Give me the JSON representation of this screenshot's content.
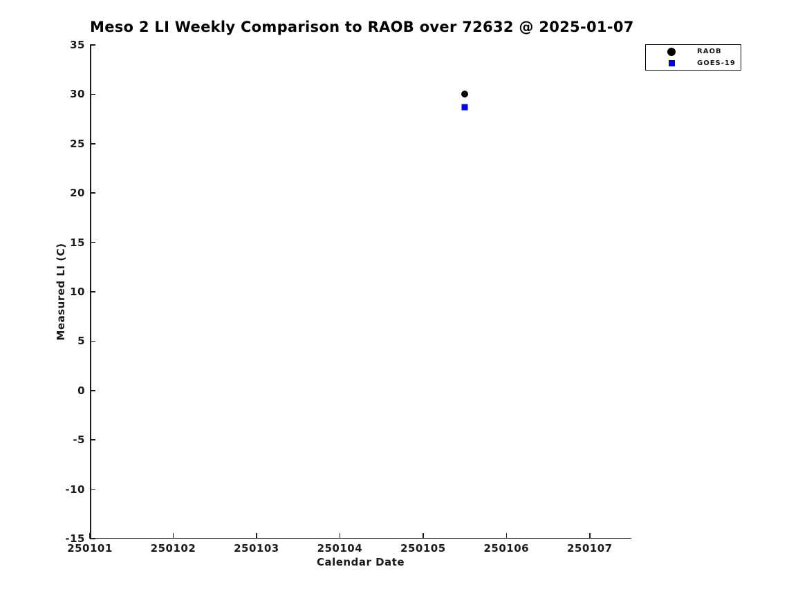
{
  "chart_data": {
    "type": "scatter",
    "title": "Meso 2 LI Weekly Comparison to RAOB over 72632 @ 2025-01-07",
    "xlabel": "Calendar Date",
    "ylabel": "Measured LI (C)",
    "xlim": [
      250101,
      250107.5
    ],
    "ylim": [
      -15,
      35
    ],
    "x_tick_values": [
      250101,
      250102,
      250103,
      250104,
      250105,
      250106,
      250107
    ],
    "x_tick_labels": [
      "250101",
      "250102",
      "250103",
      "250104",
      "250105",
      "250106",
      "250107"
    ],
    "y_tick_values": [
      -15,
      -10,
      -5,
      0,
      5,
      10,
      15,
      20,
      25,
      30,
      35
    ],
    "y_tick_labels": [
      "-15",
      "-10",
      "-5",
      "0",
      "5",
      "10",
      "15",
      "20",
      "25",
      "30",
      "35"
    ],
    "grid": false,
    "legend_position": "top-right-outside",
    "axis_color": "#1a1a1a",
    "background_color": "#ffffff",
    "series": [
      {
        "name": "RAOB",
        "marker": "circle",
        "color": "#000000",
        "points": [
          {
            "x": 250105.5,
            "y": 30.0
          }
        ]
      },
      {
        "name": "GOES-19",
        "marker": "square",
        "color": "#0000ff",
        "points": [
          {
            "x": 250105.5,
            "y": 28.7
          }
        ]
      }
    ]
  }
}
